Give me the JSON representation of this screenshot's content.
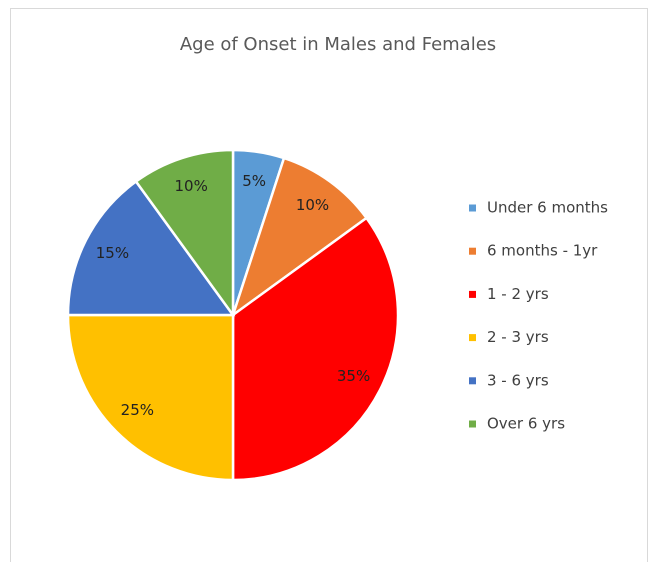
{
  "chart_data": {
    "type": "pie",
    "title": "Age of Onset in Males and Females",
    "categories": [
      "Under 6 months",
      "6 months - 1yr",
      "1 - 2 yrs",
      "2 - 3 yrs",
      "3 - 6 yrs",
      "Over 6 yrs"
    ],
    "values": [
      5,
      10,
      35,
      25,
      15,
      10
    ],
    "value_labels": [
      "5%",
      "10%",
      "35%",
      "25%",
      "15%",
      "10%"
    ],
    "colors": [
      "#5b9bd5",
      "#ed7d31",
      "#ff0000",
      "#ffc000",
      "#4472c4",
      "#70ad47"
    ],
    "legend": "right"
  }
}
